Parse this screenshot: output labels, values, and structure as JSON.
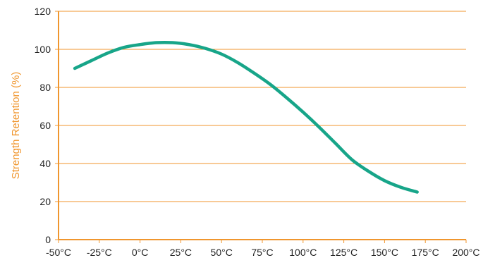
{
  "chart_data": {
    "type": "line",
    "title": "",
    "xlabel": "",
    "ylabel": "Strength Retention (%)",
    "x_tick_labels": [
      "-50°C",
      "-25°C",
      "0°C",
      "25°C",
      "50°C",
      "75°C",
      "100°C",
      "125°C",
      "150°C",
      "175°C",
      "200°C"
    ],
    "x_ticks": [
      -50,
      -25,
      0,
      25,
      50,
      75,
      100,
      125,
      150,
      175,
      200
    ],
    "y_ticks": [
      0,
      20,
      40,
      60,
      80,
      100,
      120
    ],
    "xlim": [
      -50,
      200
    ],
    "ylim": [
      0,
      120
    ],
    "grid": "horizontal",
    "legend": "none",
    "series": [
      {
        "x": [
          -40,
          -30,
          -20,
          -10,
          0,
          10,
          20,
          30,
          40,
          50,
          60,
          70,
          80,
          90,
          100,
          110,
          120,
          130,
          140,
          150,
          160,
          170
        ],
        "y": [
          90,
          94,
          98,
          101,
          102.5,
          103.5,
          103.5,
          102.5,
          100.5,
          97.5,
          93,
          87.5,
          81.5,
          74.5,
          67,
          59,
          50.5,
          42,
          36,
          31,
          27.5,
          25
        ]
      }
    ],
    "colors": {
      "line": "#17a589",
      "axis": "#f0962e",
      "ylabel": "#f0962e",
      "text": "#222222"
    }
  }
}
